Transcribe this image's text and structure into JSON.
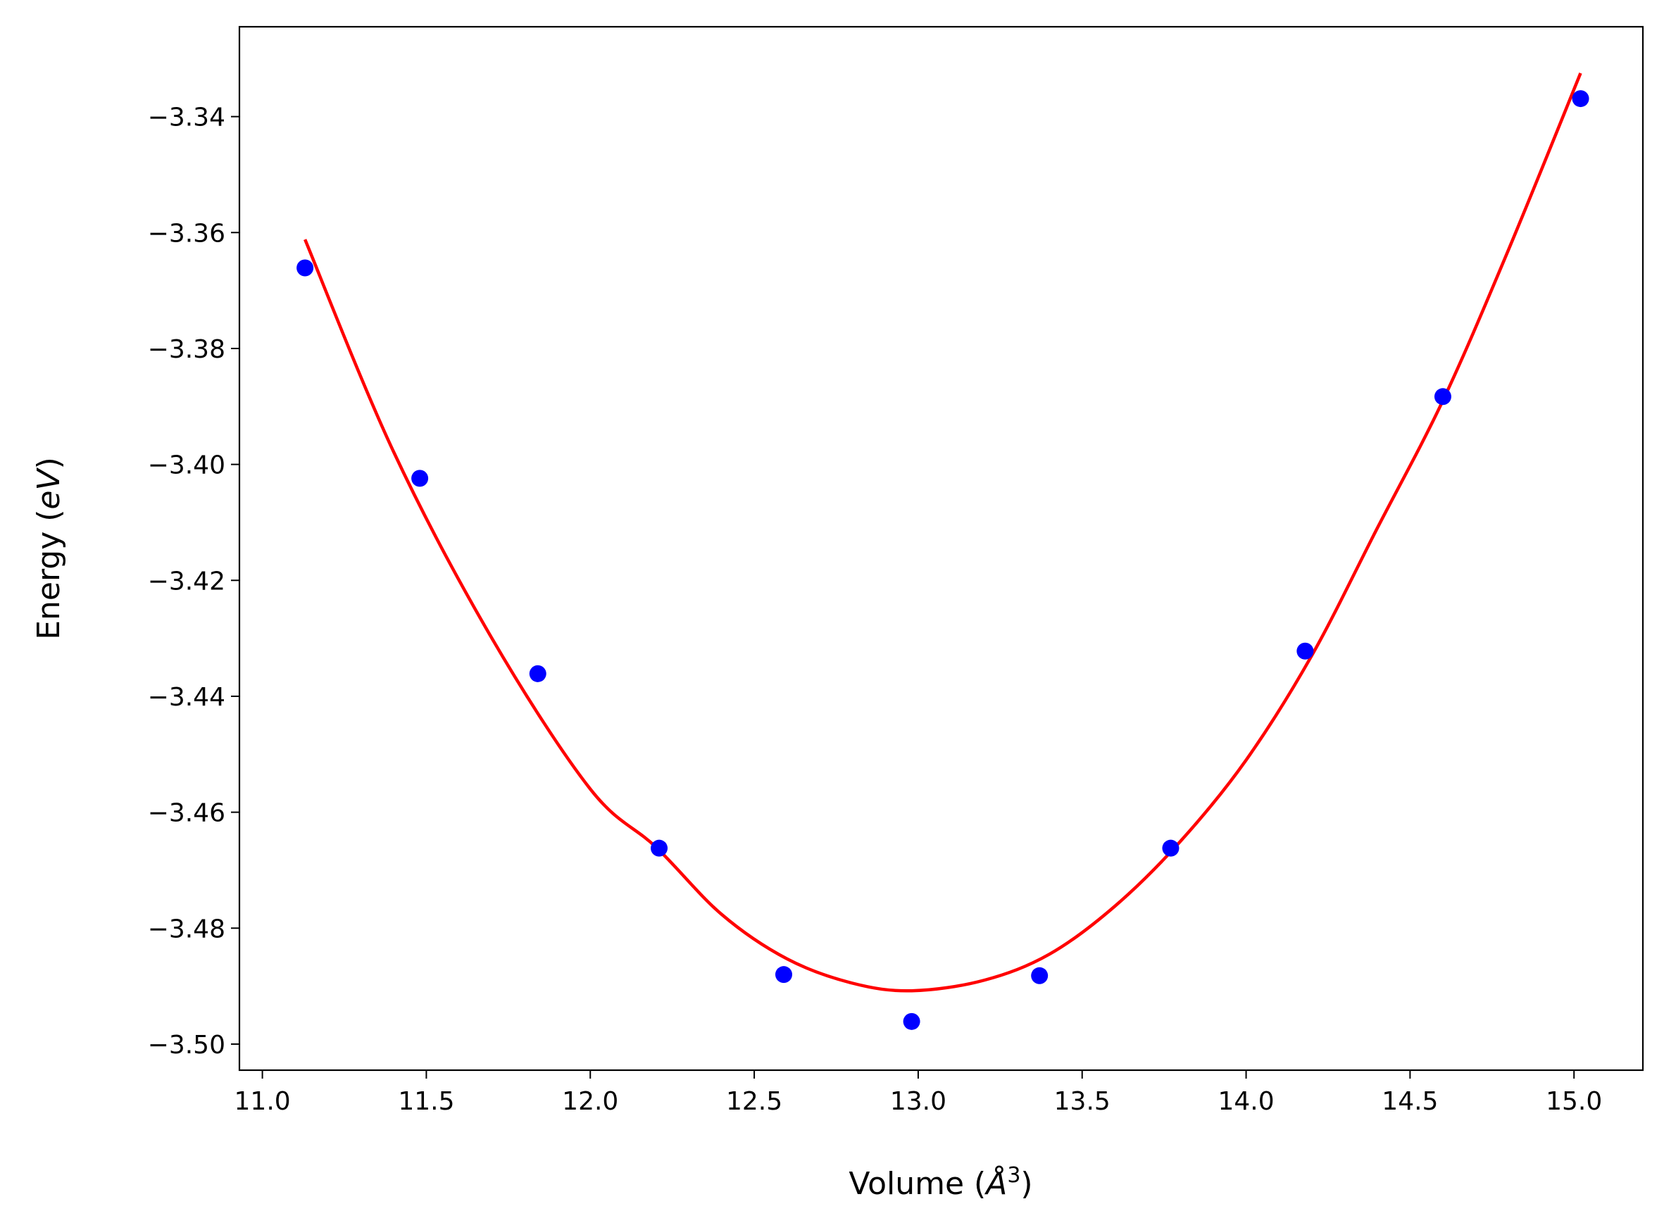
{
  "chart_data": {
    "type": "scatter",
    "title": "",
    "xlabel": {
      "prefix": "Volume (",
      "italic": "Å",
      "sup": "3",
      "suffix": ")"
    },
    "ylabel": {
      "prefix": "Energy (",
      "italic": "eV",
      "suffix": ")"
    },
    "xlim": [
      10.93,
      15.21
    ],
    "ylim": [
      -3.5045,
      -3.3245
    ],
    "xticks": [
      11.0,
      11.5,
      12.0,
      12.5,
      13.0,
      13.5,
      14.0,
      14.5,
      15.0
    ],
    "xtick_labels": [
      "11.0",
      "11.5",
      "12.0",
      "12.5",
      "13.0",
      "13.5",
      "14.0",
      "14.5",
      "15.0"
    ],
    "yticks": [
      -3.34,
      -3.36,
      -3.38,
      -3.4,
      -3.42,
      -3.44,
      -3.46,
      -3.48,
      -3.5
    ],
    "ytick_labels": [
      "−3.34",
      "−3.36",
      "−3.38",
      "−3.40",
      "−3.42",
      "−3.44",
      "−3.46",
      "−3.48",
      "−3.50"
    ],
    "grid": false,
    "legend": "none",
    "series": [
      {
        "kind": "scatter",
        "color": "#0000ff",
        "x": [
          11.13,
          11.48,
          11.84,
          12.21,
          12.59,
          12.98,
          13.37,
          13.77,
          14.18,
          14.6,
          15.02
        ],
        "y": [
          -3.3661,
          -3.4024,
          -3.4361,
          -3.4662,
          -3.488,
          -3.4961,
          -3.4882,
          -3.4662,
          -3.4322,
          -3.3883,
          -3.3369
        ]
      },
      {
        "kind": "line",
        "color": "#ff0000",
        "x": [
          11.13,
          11.4,
          11.7,
          12.0,
          12.2,
          12.4,
          12.6,
          12.8,
          12.98,
          13.2,
          13.4,
          13.6,
          13.8,
          14.0,
          14.2,
          14.4,
          14.6,
          14.8,
          15.02
        ],
        "y": [
          -3.3612,
          -3.3978,
          -3.43,
          -3.456,
          -3.466,
          -3.4776,
          -3.4853,
          -3.4895,
          -3.4908,
          -3.489,
          -3.4845,
          -3.4762,
          -3.465,
          -3.451,
          -3.433,
          -3.411,
          -3.389,
          -3.363,
          -3.3325
        ]
      }
    ]
  }
}
